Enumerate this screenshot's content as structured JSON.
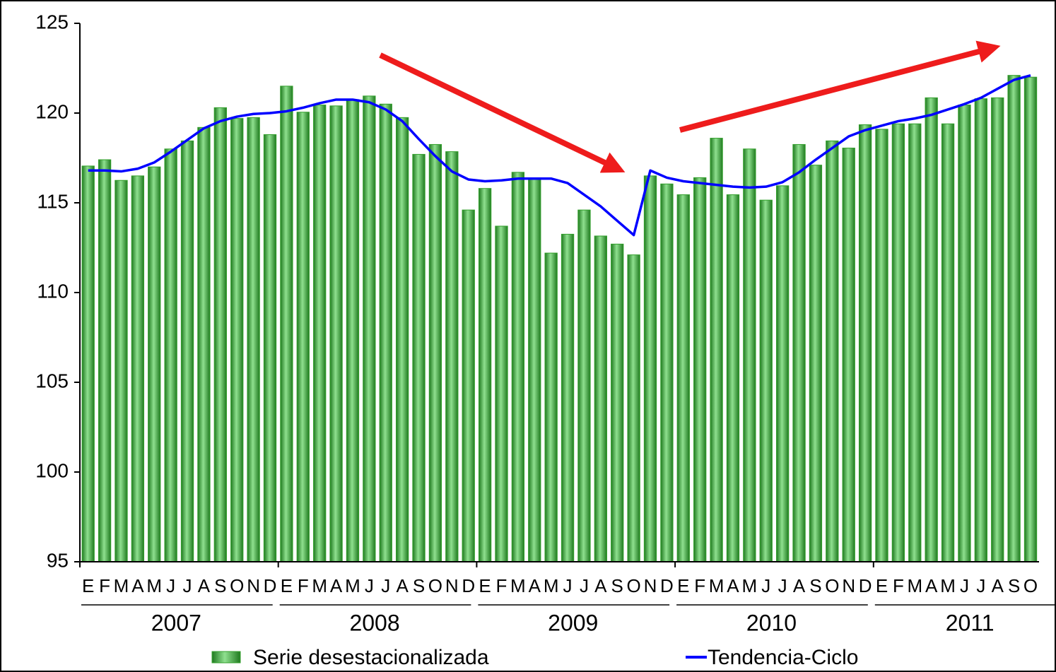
{
  "chart_data": {
    "type": "bar",
    "categories": [
      "E",
      "F",
      "M",
      "A",
      "M",
      "J",
      "J",
      "A",
      "S",
      "O",
      "N",
      "D",
      "E",
      "F",
      "M",
      "A",
      "M",
      "J",
      "J",
      "A",
      "S",
      "O",
      "N",
      "D",
      "E",
      "F",
      "M",
      "A",
      "M",
      "J",
      "J",
      "A",
      "S",
      "O",
      "N",
      "D",
      "E",
      "F",
      "M",
      "A",
      "M",
      "J",
      "J",
      "A",
      "S",
      "O",
      "N",
      "D",
      "E",
      "F",
      "M",
      "A",
      "M",
      "J",
      "J",
      "A",
      "S",
      "O"
    ],
    "x_groups": [
      "2007",
      "2008",
      "2009",
      "2010",
      "2011"
    ],
    "series": [
      {
        "name": "Serie desestacionalizada",
        "type": "bar",
        "color": "#33a02c",
        "values": [
          117.05,
          117.4,
          116.25,
          116.5,
          117.0,
          118.0,
          118.45,
          119.2,
          120.3,
          119.7,
          119.75,
          118.8,
          121.5,
          120.05,
          120.45,
          120.4,
          120.75,
          120.95,
          120.5,
          119.75,
          117.7,
          118.25,
          117.85,
          114.6,
          115.8,
          113.7,
          116.7,
          116.3,
          112.2,
          113.25,
          114.6,
          113.15,
          112.7,
          112.1,
          116.5,
          116.05,
          115.45,
          116.4,
          118.6,
          115.45,
          118.0,
          115.15,
          115.95,
          118.25,
          117.1,
          118.45,
          118.05,
          119.35,
          119.1,
          119.4,
          119.4,
          120.85,
          119.4,
          120.45,
          120.8,
          120.85,
          122.1,
          122.0
        ]
      },
      {
        "name": "Tendencia-Ciclo",
        "type": "line",
        "color": "#0000ff",
        "values": [
          116.8,
          116.8,
          116.75,
          116.9,
          117.25,
          117.85,
          118.5,
          119.15,
          119.55,
          119.8,
          119.95,
          120.0,
          120.1,
          120.3,
          120.55,
          120.75,
          120.75,
          120.6,
          120.2,
          119.55,
          118.55,
          117.6,
          116.75,
          116.3,
          116.2,
          116.25,
          116.35,
          116.35,
          116.35,
          116.1,
          115.45,
          114.8,
          114.0,
          113.2,
          116.8,
          116.4,
          116.2,
          116.1,
          116.0,
          115.9,
          115.85,
          115.9,
          116.15,
          116.7,
          117.4,
          118.05,
          118.7,
          119.05,
          119.3,
          119.55,
          119.7,
          119.9,
          120.2,
          120.5,
          120.85,
          121.35,
          121.85,
          122.1
        ]
      }
    ],
    "ylim": [
      95,
      125
    ],
    "yticks": [
      95,
      100,
      105,
      110,
      115,
      120,
      125
    ],
    "grid": false,
    "legend": "bottom"
  }
}
